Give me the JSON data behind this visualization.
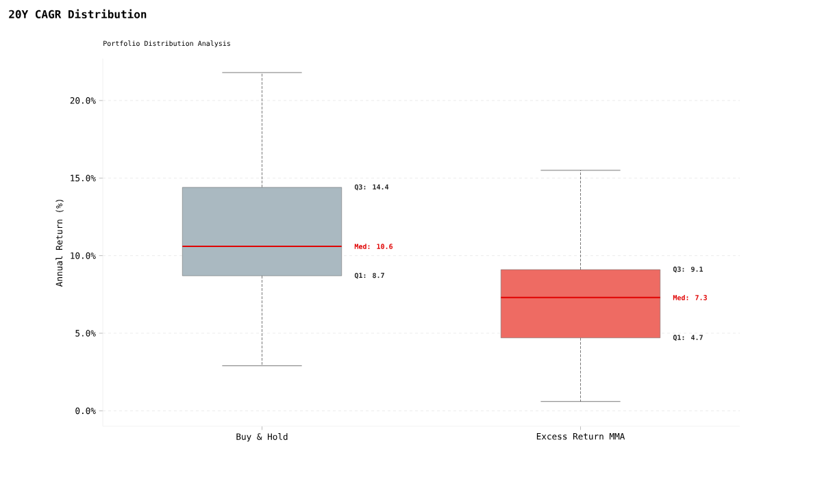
{
  "chart_data": {
    "type": "box",
    "title": "20Y CAGR Distribution",
    "subtitle": "Portfolio Distribution Analysis",
    "ylabel": "Annual Return (%)",
    "categories": [
      "Buy & Hold",
      "Excess Return MMA"
    ],
    "boxes": [
      {
        "low": 2.9,
        "q1": 8.7,
        "median": 10.6,
        "q3": 14.4,
        "high": 21.8
      },
      {
        "low": 0.6,
        "q1": 4.7,
        "median": 7.3,
        "q3": 9.1,
        "high": 15.5
      }
    ],
    "colors": [
      "#aab9c1",
      "#ee6b63"
    ],
    "ylim": [
      -1.0,
      22.7
    ],
    "yticks": [
      {
        "value": 0,
        "label": "0.0%"
      },
      {
        "value": 5,
        "label": "5.0%"
      },
      {
        "value": 10,
        "label": "10.0%"
      },
      {
        "value": 15,
        "label": "15.0%"
      },
      {
        "value": 20,
        "label": "20.0%"
      }
    ],
    "grid": "y",
    "annotations": [
      "Q3: 14.4",
      "Med: 10.6",
      "Q1: 8.7",
      "Q3: 9.1",
      "Med: 7.3",
      "Q1: 4.7"
    ]
  }
}
